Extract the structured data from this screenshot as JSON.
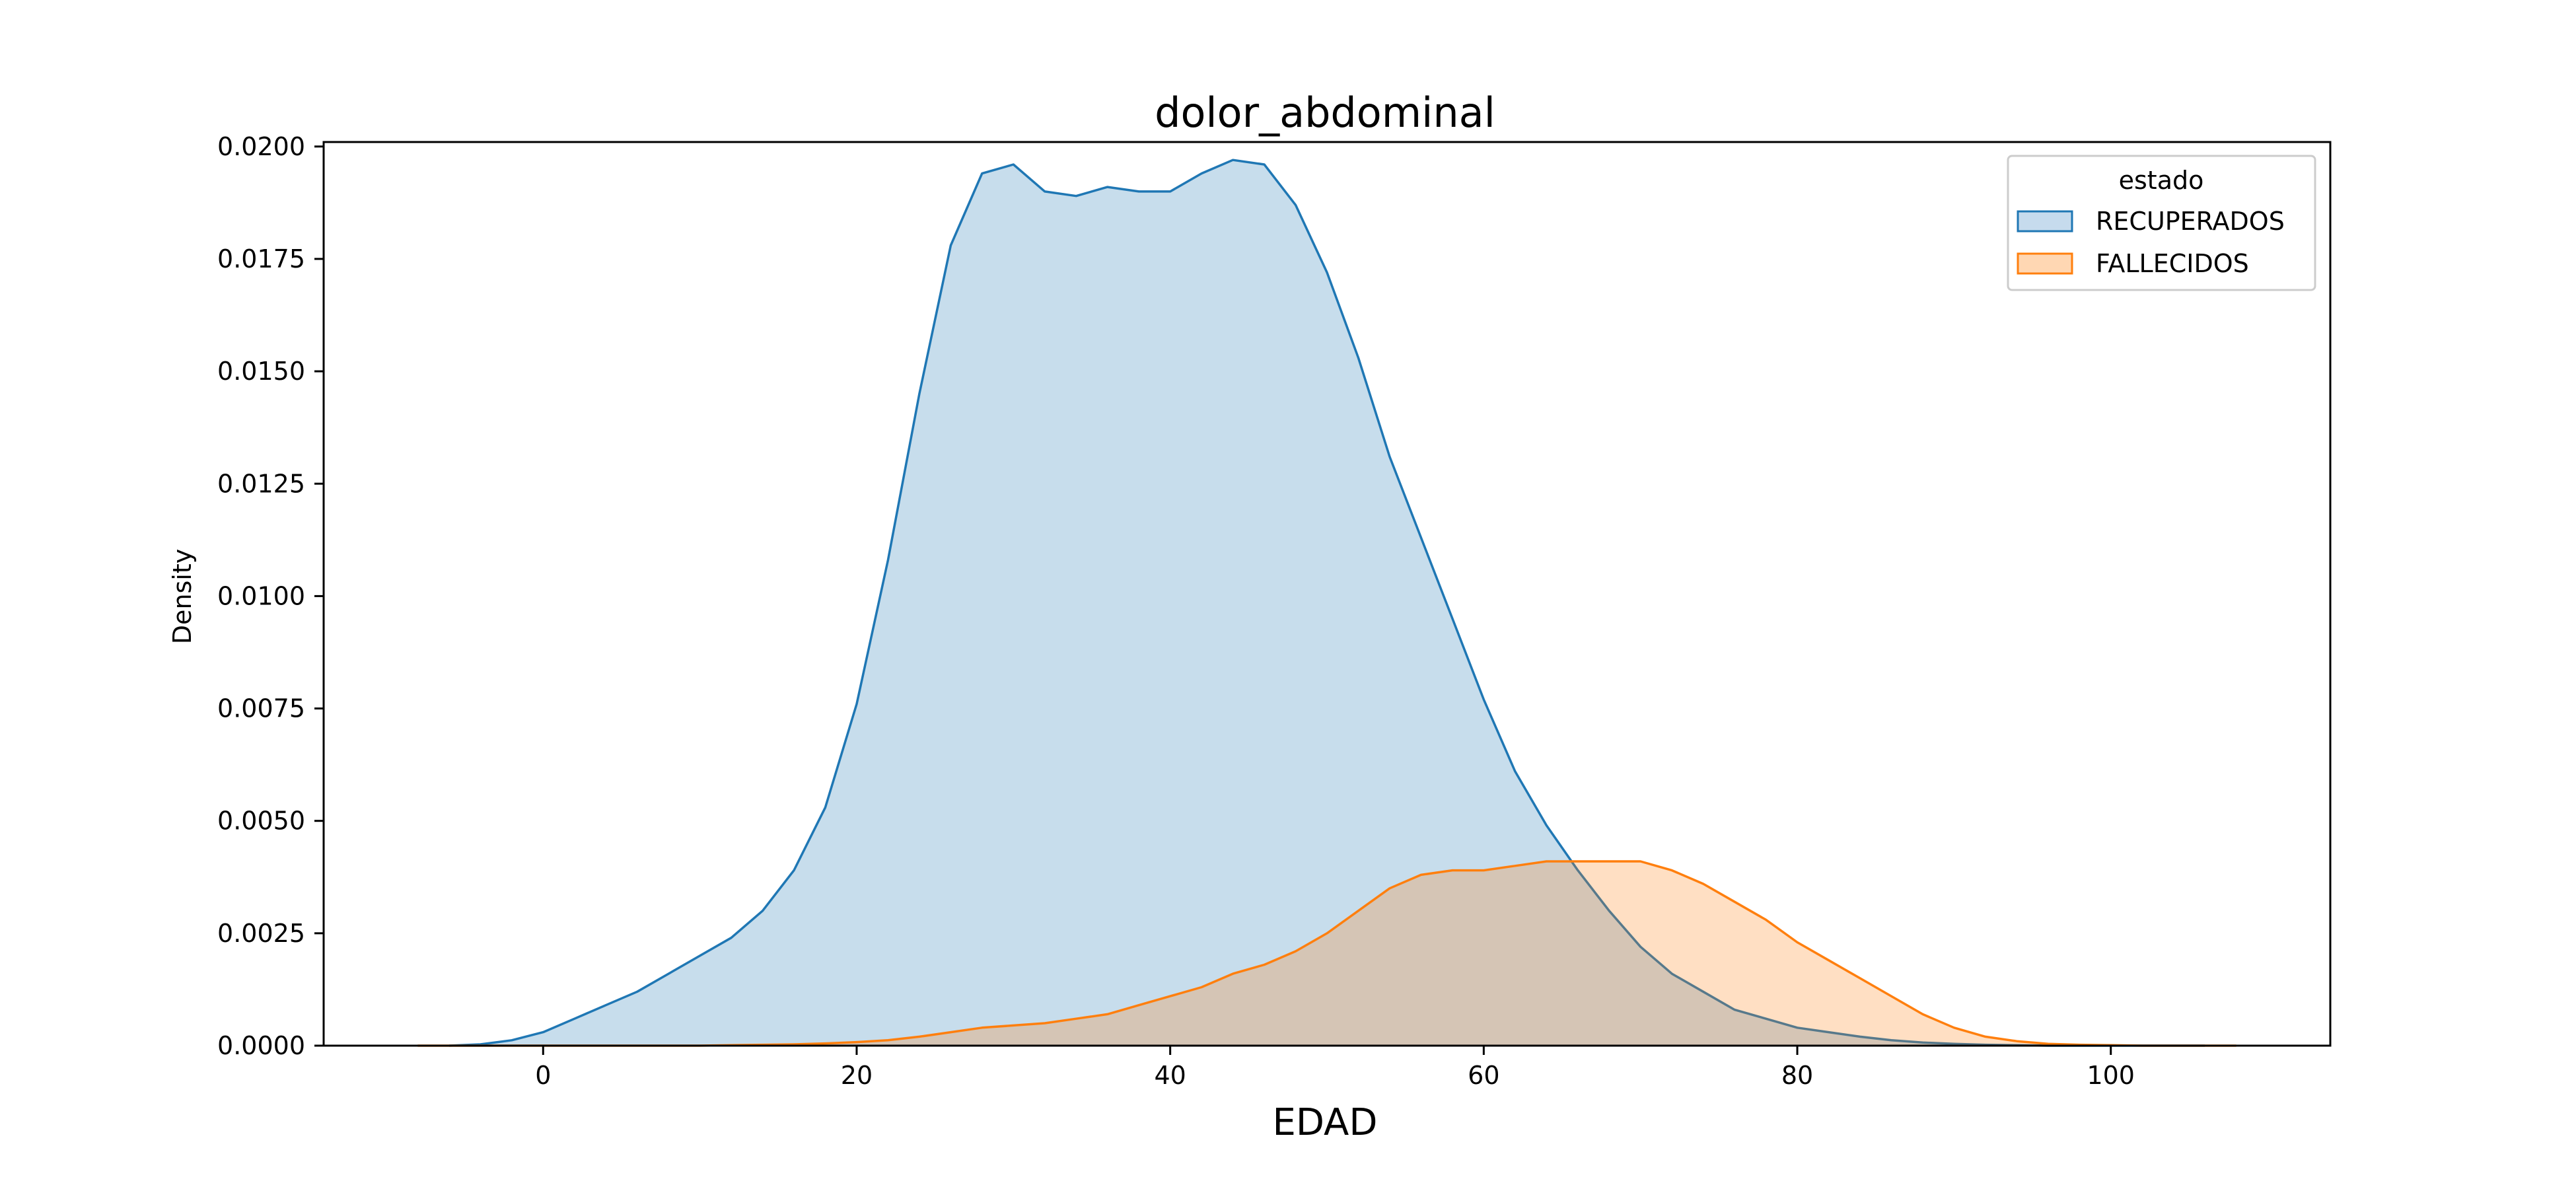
{
  "chart_data": {
    "type": "area",
    "title": "dolor_abdominal",
    "xlabel": "EDAD",
    "ylabel": "Density",
    "xlim": [
      -14,
      114
    ],
    "ylim": [
      0,
      0.0201
    ],
    "xticks": [
      0,
      20,
      40,
      60,
      80,
      100
    ],
    "xtick_labels": [
      "0",
      "20",
      "40",
      "60",
      "80",
      "100"
    ],
    "yticks": [
      0,
      0.0025,
      0.005,
      0.0075,
      0.01,
      0.0125,
      0.015,
      0.0175,
      0.02
    ],
    "ytick_labels": [
      "0.0000",
      "0.0025",
      "0.0050",
      "0.0075",
      "0.0100",
      "0.0125",
      "0.0150",
      "0.0175",
      "0.0200"
    ],
    "grid": false,
    "legend": {
      "title": "estado",
      "placement": "top-right"
    },
    "series": [
      {
        "name": "RECUPERADOS",
        "color": "#1f77b4",
        "fill": "#c6dbed",
        "x": [
          -6,
          -4,
          -2,
          0,
          2,
          4,
          6,
          8,
          10,
          12,
          14,
          16,
          18,
          20,
          22,
          24,
          26,
          28,
          30,
          32,
          34,
          36,
          38,
          40,
          42,
          44,
          46,
          48,
          50,
          52,
          54,
          56,
          58,
          60,
          62,
          64,
          66,
          68,
          70,
          72,
          74,
          76,
          78,
          80,
          82,
          84,
          86,
          88,
          90,
          92,
          94,
          96,
          98,
          100,
          102,
          104,
          106
        ],
        "y": [
          0.0,
          3e-05,
          0.00012,
          0.0003,
          0.0006,
          0.0009,
          0.0012,
          0.0016,
          0.002,
          0.0024,
          0.003,
          0.0039,
          0.0053,
          0.0076,
          0.0108,
          0.0145,
          0.0178,
          0.0194,
          0.0196,
          0.019,
          0.0189,
          0.0191,
          0.019,
          0.019,
          0.0194,
          0.0197,
          0.0196,
          0.0187,
          0.0172,
          0.0153,
          0.0131,
          0.0113,
          0.0095,
          0.0077,
          0.0061,
          0.0049,
          0.0039,
          0.003,
          0.0022,
          0.0016,
          0.0012,
          0.0008,
          0.0006,
          0.0004,
          0.0003,
          0.0002,
          0.00012,
          7e-05,
          4e-05,
          2e-05,
          1e-05,
          0.0,
          0.0,
          0.0,
          0.0,
          0.0,
          0.0
        ]
      },
      {
        "name": "FALLECIDOS",
        "color": "#ff7f0e",
        "fill": "#ffd7b3",
        "x": [
          -8,
          -6,
          -4,
          -2,
          0,
          2,
          4,
          6,
          8,
          10,
          12,
          14,
          16,
          18,
          20,
          22,
          24,
          26,
          28,
          30,
          32,
          34,
          36,
          38,
          40,
          42,
          44,
          46,
          48,
          50,
          52,
          54,
          56,
          58,
          60,
          62,
          64,
          66,
          68,
          70,
          72,
          74,
          76,
          78,
          80,
          82,
          84,
          86,
          88,
          90,
          92,
          94,
          96,
          98,
          100,
          102,
          104,
          106,
          108
        ],
        "y": [
          0.0,
          0.0,
          0.0,
          0.0,
          0.0,
          0.0,
          0.0,
          0.0,
          0.0,
          0.0,
          1e-05,
          2e-05,
          3e-05,
          5e-05,
          8e-05,
          0.00012,
          0.0002,
          0.0003,
          0.0004,
          0.00045,
          0.0005,
          0.0006,
          0.0007,
          0.0009,
          0.0011,
          0.0013,
          0.0016,
          0.0018,
          0.0021,
          0.0025,
          0.003,
          0.0035,
          0.0038,
          0.0039,
          0.0039,
          0.004,
          0.0041,
          0.0041,
          0.0041,
          0.0041,
          0.0039,
          0.0036,
          0.0032,
          0.0028,
          0.0023,
          0.0019,
          0.0015,
          0.0011,
          0.0007,
          0.0004,
          0.0002,
          0.0001,
          4e-05,
          2e-05,
          1e-05,
          0.0,
          0.0,
          0.0,
          0.0
        ]
      }
    ]
  }
}
